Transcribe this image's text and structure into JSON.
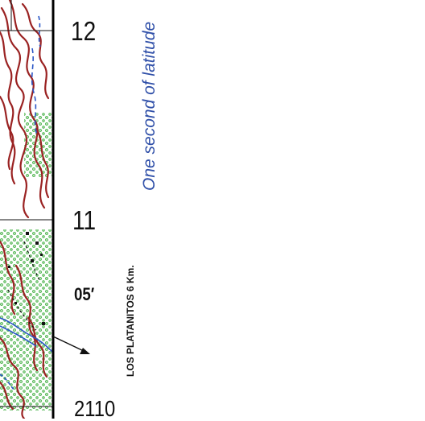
{
  "map": {
    "grid_labels": {
      "northing_12": "12",
      "northing_11": "11",
      "easting_2110": "2110"
    },
    "minute_label": "05′",
    "scale_note": "One second of latitude",
    "destination_note": "LOS PLATANITOS 6 Km.",
    "colors": {
      "contour": "#9a2222",
      "water": "#2a56c6",
      "vegetation": "#3fae3f",
      "frame": "#000000",
      "annotation_blue": "#2f4fa8"
    },
    "icons": {
      "road_arrow": "arrow-icon",
      "building": "building-marker-icon"
    }
  }
}
